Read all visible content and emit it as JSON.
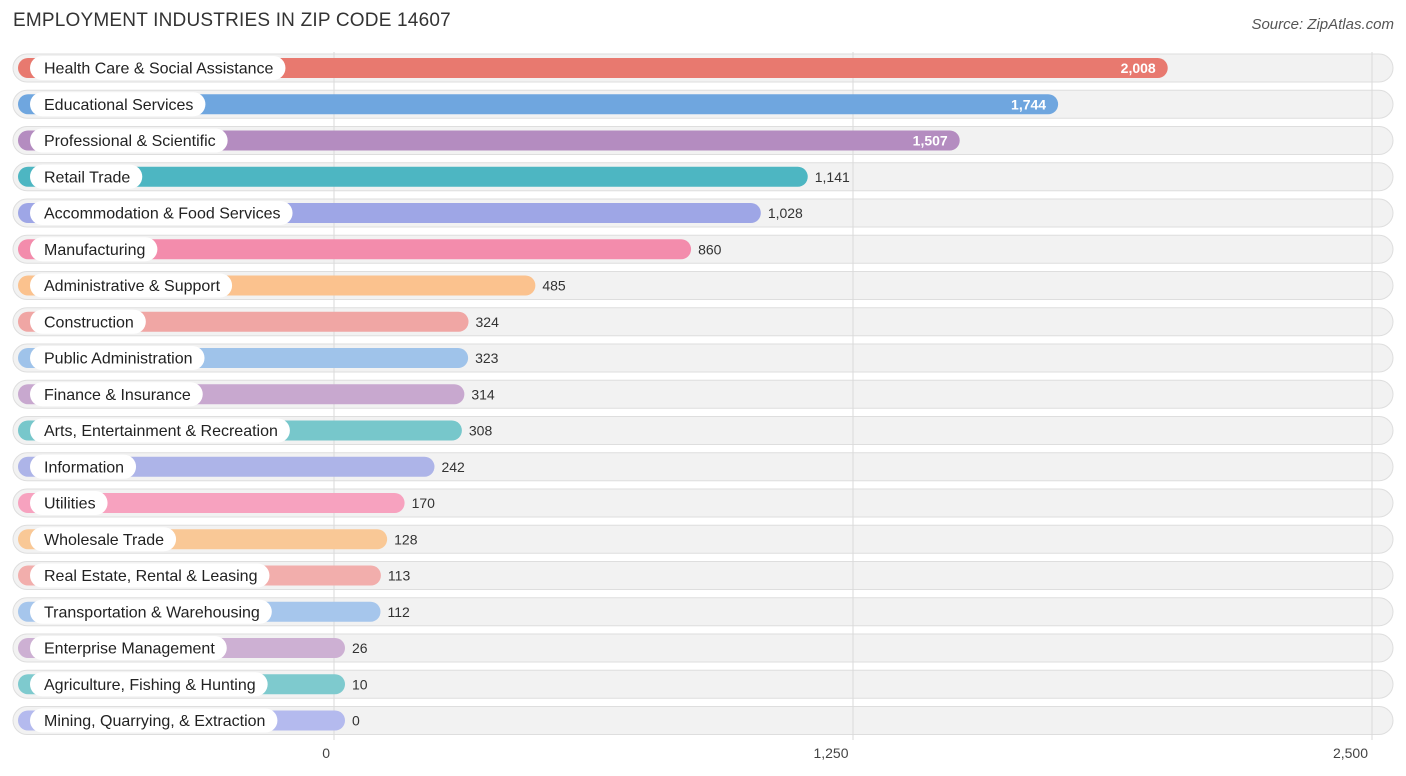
{
  "title": "EMPLOYMENT INDUSTRIES IN ZIP CODE 14607",
  "source": "Source: ZipAtlas.com",
  "chart_data": {
    "type": "bar",
    "orientation": "horizontal",
    "title": "EMPLOYMENT INDUSTRIES IN ZIP CODE 14607",
    "xlabel": "",
    "ylabel": "",
    "xlim": [
      0,
      2500
    ],
    "ticks": [
      0,
      1250,
      2500
    ],
    "tick_labels": [
      "0",
      "1,250",
      "2,500"
    ],
    "grid": true,
    "categories": [
      "Health Care & Social Assistance",
      "Educational Services",
      "Professional & Scientific",
      "Retail Trade",
      "Accommodation & Food Services",
      "Manufacturing",
      "Administrative & Support",
      "Construction",
      "Public Administration",
      "Finance & Insurance",
      "Arts, Entertainment & Recreation",
      "Information",
      "Utilities",
      "Wholesale Trade",
      "Real Estate, Rental & Leasing",
      "Transportation & Warehousing",
      "Enterprise Management",
      "Agriculture, Fishing & Hunting",
      "Mining, Quarrying, & Extraction"
    ],
    "values": [
      2008,
      1744,
      1507,
      1141,
      1028,
      860,
      485,
      324,
      323,
      314,
      308,
      242,
      170,
      128,
      113,
      112,
      26,
      10,
      0
    ],
    "value_labels": [
      "2,008",
      "1,744",
      "1,507",
      "1,141",
      "1,028",
      "860",
      "485",
      "324",
      "323",
      "314",
      "308",
      "242",
      "170",
      "128",
      "113",
      "112",
      "26",
      "10",
      "0"
    ],
    "colors": [
      "#e8796f",
      "#6fa6df",
      "#b48cc0",
      "#4db6c2",
      "#9ea6e6",
      "#f38cac",
      "#fbc28e",
      "#f0a6a4",
      "#9fc3ea",
      "#c8a8cf",
      "#77c7cb",
      "#adb4e8",
      "#f7a2bf",
      "#f9c896",
      "#f2aeac",
      "#a6c6ec",
      "#cdb0d3",
      "#7ecace",
      "#b4baee"
    ]
  }
}
